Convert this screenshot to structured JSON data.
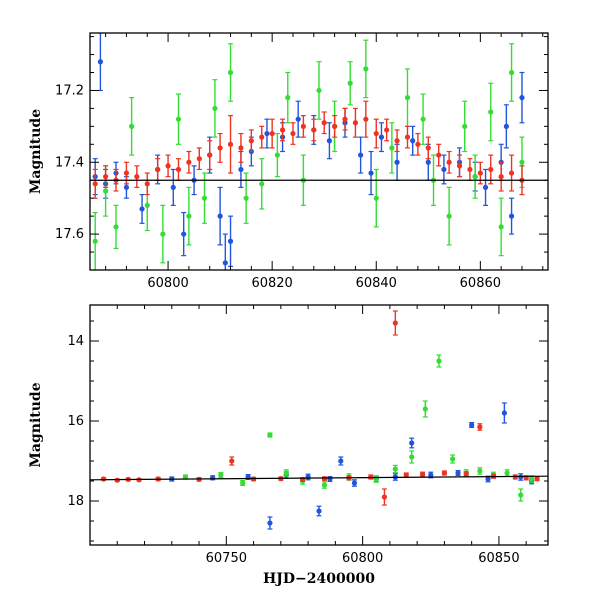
{
  "chart_data": [
    {
      "type": "scatter",
      "panel": "top",
      "title": "",
      "xlabel": "",
      "ylabel": "Magnitude",
      "xlim": [
        60785,
        60873
      ],
      "ylim": [
        17.7,
        17.04
      ],
      "y_inverted": true,
      "xticks": [
        60800,
        60820,
        60840,
        60860
      ],
      "yticks": [
        17.2,
        17.4,
        17.6
      ],
      "grid": false,
      "legend": "none",
      "series": [
        {
          "color": "#2255dd",
          "points": [
            [
              60786,
              17.44,
              0.05
            ],
            [
              60787,
              17.12,
              0.08
            ],
            [
              60788,
              17.46,
              0.04
            ],
            [
              60790,
              17.43,
              0.03
            ],
            [
              60792,
              17.47,
              0.03
            ],
            [
              60795,
              17.53,
              0.04
            ],
            [
              60798,
              17.42,
              0.04
            ],
            [
              60801,
              17.47,
              0.05
            ],
            [
              60803,
              17.6,
              0.06
            ],
            [
              60805,
              17.45,
              0.04
            ],
            [
              60808,
              17.38,
              0.05
            ],
            [
              60810,
              17.55,
              0.08
            ],
            [
              60811,
              17.68,
              0.08
            ],
            [
              60812,
              17.62,
              0.07
            ],
            [
              60814,
              17.42,
              0.05
            ],
            [
              60816,
              17.37,
              0.04
            ],
            [
              60819,
              17.32,
              0.04
            ],
            [
              60822,
              17.33,
              0.04
            ],
            [
              60825,
              17.28,
              0.05
            ],
            [
              60828,
              17.31,
              0.04
            ],
            [
              60831,
              17.34,
              0.05
            ],
            [
              60834,
              17.29,
              0.04
            ],
            [
              60837,
              17.38,
              0.05
            ],
            [
              60839,
              17.43,
              0.06
            ],
            [
              60841,
              17.33,
              0.04
            ],
            [
              60844,
              17.4,
              0.05
            ],
            [
              60847,
              17.34,
              0.04
            ],
            [
              60850,
              17.4,
              0.05
            ],
            [
              60853,
              17.42,
              0.04
            ],
            [
              60856,
              17.4,
              0.04
            ],
            [
              60859,
              17.44,
              0.04
            ],
            [
              60861,
              17.47,
              0.05
            ],
            [
              60864,
              17.4,
              0.05
            ],
            [
              60865,
              17.3,
              0.06
            ],
            [
              60866,
              17.55,
              0.05
            ],
            [
              60868,
              17.22,
              0.07
            ]
          ]
        },
        {
          "color": "#33dd33",
          "points": [
            [
              60786,
              17.62,
              0.08
            ],
            [
              60788,
              17.48,
              0.07
            ],
            [
              60790,
              17.58,
              0.06
            ],
            [
              60793,
              17.3,
              0.08
            ],
            [
              60796,
              17.52,
              0.07
            ],
            [
              60799,
              17.6,
              0.08
            ],
            [
              60802,
              17.28,
              0.07
            ],
            [
              60804,
              17.55,
              0.08
            ],
            [
              60807,
              17.5,
              0.07
            ],
            [
              60809,
              17.25,
              0.08
            ],
            [
              60812,
              17.15,
              0.08
            ],
            [
              60815,
              17.5,
              0.07
            ],
            [
              60818,
              17.46,
              0.07
            ],
            [
              60821,
              17.38,
              0.06
            ],
            [
              60823,
              17.22,
              0.07
            ],
            [
              60826,
              17.45,
              0.07
            ],
            [
              60829,
              17.2,
              0.08
            ],
            [
              60832,
              17.3,
              0.07
            ],
            [
              60835,
              17.18,
              0.06
            ],
            [
              60838,
              17.14,
              0.08
            ],
            [
              60840,
              17.5,
              0.08
            ],
            [
              60843,
              17.36,
              0.07
            ],
            [
              60846,
              17.22,
              0.08
            ],
            [
              60849,
              17.28,
              0.07
            ],
            [
              60851,
              17.45,
              0.07
            ],
            [
              60854,
              17.55,
              0.08
            ],
            [
              60857,
              17.3,
              0.07
            ],
            [
              60859,
              17.44,
              0.06
            ],
            [
              60862,
              17.26,
              0.08
            ],
            [
              60864,
              17.58,
              0.08
            ],
            [
              60866,
              17.15,
              0.08
            ],
            [
              60868,
              17.4,
              0.07
            ]
          ]
        },
        {
          "color": "#ee3322",
          "points": [
            [
              60786,
              17.46,
              0.04
            ],
            [
              60788,
              17.44,
              0.03
            ],
            [
              60790,
              17.45,
              0.03
            ],
            [
              60792,
              17.43,
              0.03
            ],
            [
              60794,
              17.44,
              0.03
            ],
            [
              60796,
              17.46,
              0.03
            ],
            [
              60798,
              17.42,
              0.03
            ],
            [
              60800,
              17.41,
              0.03
            ],
            [
              60802,
              17.42,
              0.03
            ],
            [
              60804,
              17.4,
              0.03
            ],
            [
              60806,
              17.39,
              0.03
            ],
            [
              60808,
              17.38,
              0.04
            ],
            [
              60810,
              17.36,
              0.04
            ],
            [
              60812,
              17.35,
              0.08
            ],
            [
              60814,
              17.36,
              0.04
            ],
            [
              60816,
              17.34,
              0.03
            ],
            [
              60818,
              17.33,
              0.03
            ],
            [
              60820,
              17.32,
              0.04
            ],
            [
              60822,
              17.31,
              0.03
            ],
            [
              60824,
              17.32,
              0.03
            ],
            [
              60826,
              17.3,
              0.03
            ],
            [
              60828,
              17.31,
              0.03
            ],
            [
              60830,
              17.29,
              0.03
            ],
            [
              60832,
              17.3,
              0.03
            ],
            [
              60834,
              17.28,
              0.03
            ],
            [
              60836,
              17.29,
              0.04
            ],
            [
              60838,
              17.28,
              0.05
            ],
            [
              60840,
              17.32,
              0.04
            ],
            [
              60842,
              17.31,
              0.03
            ],
            [
              60844,
              17.34,
              0.03
            ],
            [
              60846,
              17.33,
              0.03
            ],
            [
              60848,
              17.35,
              0.03
            ],
            [
              60850,
              17.36,
              0.03
            ],
            [
              60852,
              17.38,
              0.03
            ],
            [
              60854,
              17.4,
              0.03
            ],
            [
              60856,
              17.41,
              0.03
            ],
            [
              60858,
              17.42,
              0.03
            ],
            [
              60860,
              17.43,
              0.03
            ],
            [
              60862,
              17.42,
              0.04
            ],
            [
              60864,
              17.44,
              0.04
            ],
            [
              60866,
              17.43,
              0.05
            ],
            [
              60868,
              17.45,
              0.04
            ]
          ]
        }
      ],
      "trend_line": [
        [
          60785,
          17.45
        ],
        [
          60873,
          17.45
        ]
      ]
    },
    {
      "type": "scatter",
      "panel": "bottom",
      "title": "",
      "xlabel": "HJD−2400000",
      "ylabel": "Magnitude",
      "xlim": [
        60700,
        60868
      ],
      "ylim": [
        19.1,
        13.1
      ],
      "y_inverted": true,
      "xticks": [
        60750,
        60800,
        60850
      ],
      "yticks": [
        14,
        16,
        18
      ],
      "grid": false,
      "legend": "none",
      "series": [
        {
          "color": "#2255dd",
          "points": [
            [
              60730,
              17.45,
              0.05
            ],
            [
              60745,
              17.42,
              0.05
            ],
            [
              60758,
              17.4,
              0.06
            ],
            [
              60766,
              18.55,
              0.15
            ],
            [
              60772,
              17.35,
              0.08
            ],
            [
              60780,
              17.4,
              0.07
            ],
            [
              60784,
              18.25,
              0.12
            ],
            [
              60788,
              17.45,
              0.06
            ],
            [
              60792,
              17.0,
              0.1
            ],
            [
              60797,
              17.55,
              0.08
            ],
            [
              60805,
              17.45,
              0.07
            ],
            [
              60812,
              17.4,
              0.08
            ],
            [
              60818,
              16.55,
              0.12
            ],
            [
              60825,
              17.35,
              0.07
            ],
            [
              60835,
              17.3,
              0.06
            ],
            [
              60840,
              16.1,
              0.06
            ],
            [
              60846,
              17.45,
              0.07
            ],
            [
              60852,
              15.8,
              0.25
            ],
            [
              60858,
              17.4,
              0.08
            ],
            [
              60862,
              17.5,
              0.07
            ]
          ]
        },
        {
          "color": "#33dd33",
          "points": [
            [
              60735,
              17.4,
              0.05
            ],
            [
              60748,
              17.35,
              0.06
            ],
            [
              60756,
              17.55,
              0.06
            ],
            [
              60766,
              16.35,
              0.05
            ],
            [
              60772,
              17.3,
              0.08
            ],
            [
              60778,
              17.5,
              0.08
            ],
            [
              60786,
              17.6,
              0.08
            ],
            [
              60795,
              17.4,
              0.08
            ],
            [
              60805,
              17.45,
              0.08
            ],
            [
              60812,
              17.2,
              0.09
            ],
            [
              60818,
              16.9,
              0.15
            ],
            [
              60823,
              15.7,
              0.2
            ],
            [
              60828,
              14.5,
              0.15
            ],
            [
              60833,
              16.95,
              0.1
            ],
            [
              60838,
              17.3,
              0.08
            ],
            [
              60843,
              17.25,
              0.08
            ],
            [
              60848,
              17.35,
              0.07
            ],
            [
              60853,
              17.3,
              0.08
            ],
            [
              60858,
              17.85,
              0.15
            ],
            [
              60862,
              17.45,
              0.08
            ]
          ]
        },
        {
          "color": "#ee3322",
          "points": [
            [
              60705,
              17.45,
              0.03
            ],
            [
              60710,
              17.48,
              0.03
            ],
            [
              60714,
              17.46,
              0.03
            ],
            [
              60718,
              17.47,
              0.03
            ],
            [
              60725,
              17.45,
              0.04
            ],
            [
              60740,
              17.46,
              0.04
            ],
            [
              60752,
              17.0,
              0.1
            ],
            [
              60760,
              17.45,
              0.04
            ],
            [
              60770,
              17.44,
              0.04
            ],
            [
              60778,
              17.46,
              0.04
            ],
            [
              60786,
              17.44,
              0.04
            ],
            [
              60795,
              17.42,
              0.05
            ],
            [
              60803,
              17.4,
              0.05
            ],
            [
              60808,
              17.9,
              0.2
            ],
            [
              60812,
              13.55,
              0.3
            ],
            [
              60816,
              17.35,
              0.05
            ],
            [
              60822,
              17.33,
              0.05
            ],
            [
              60830,
              17.3,
              0.05
            ],
            [
              60838,
              17.32,
              0.05
            ],
            [
              60843,
              16.15,
              0.08
            ],
            [
              60848,
              17.38,
              0.05
            ],
            [
              60856,
              17.4,
              0.05
            ],
            [
              60860,
              17.42,
              0.05
            ],
            [
              60864,
              17.44,
              0.05
            ]
          ]
        }
      ],
      "trend_line": [
        [
          60700,
          17.47
        ],
        [
          60868,
          17.38
        ]
      ]
    }
  ]
}
